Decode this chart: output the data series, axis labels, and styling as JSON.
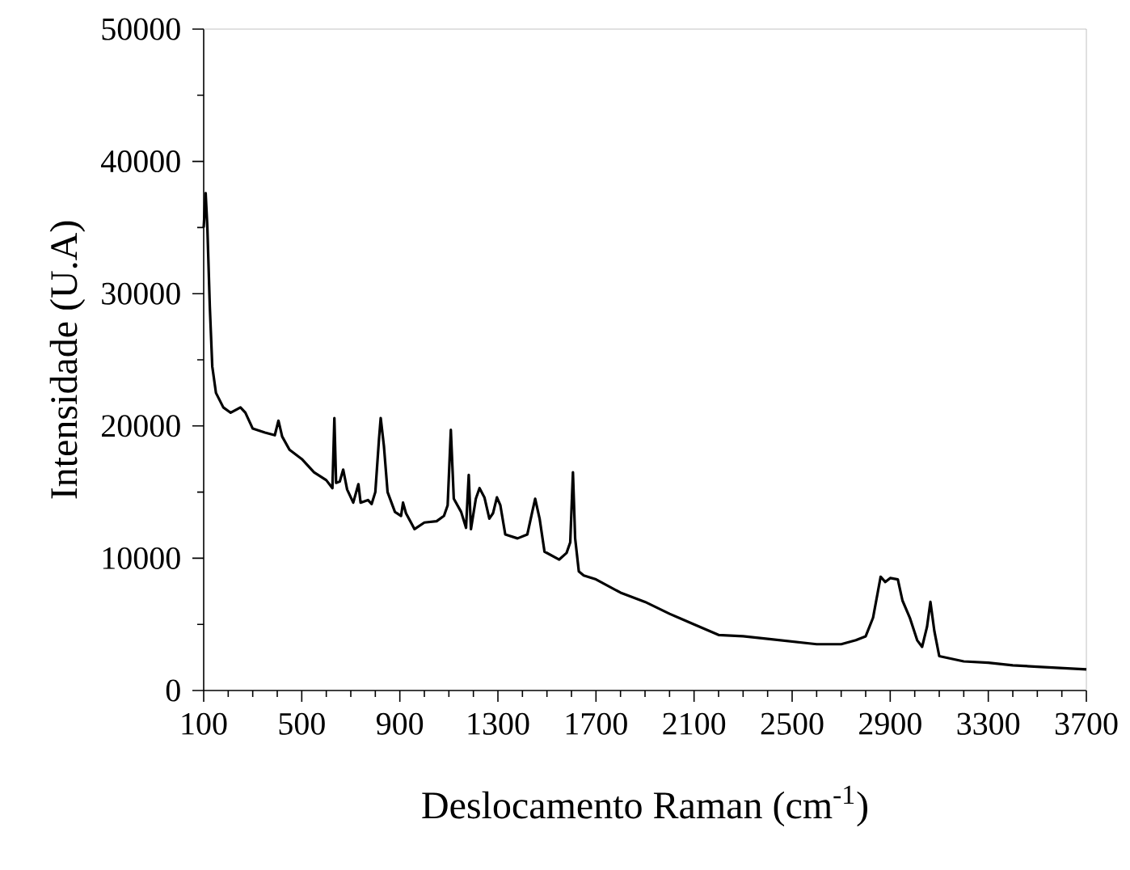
{
  "chart_data": {
    "type": "line",
    "xlabel": "Deslocamento Raman (cm$^{-1}$)",
    "ylabel": "Intensidade (U.A)",
    "color": "#000000",
    "xlim": [
      100,
      3700
    ],
    "ylim": [
      0,
      50000
    ],
    "xticks": [
      100,
      500,
      900,
      1300,
      1700,
      2100,
      2500,
      2900,
      3300,
      3700
    ],
    "yticks": [
      0,
      10000,
      20000,
      30000,
      40000,
      50000
    ],
    "x": [
      100,
      108,
      115,
      125,
      135,
      150,
      180,
      210,
      250,
      270,
      300,
      350,
      390,
      405,
      420,
      450,
      500,
      550,
      600,
      625,
      633,
      640,
      655,
      669,
      685,
      710,
      731,
      740,
      770,
      785,
      800,
      815,
      822,
      835,
      850,
      880,
      905,
      913,
      925,
      960,
      1000,
      1050,
      1080,
      1095,
      1108,
      1120,
      1150,
      1170,
      1181,
      1190,
      1210,
      1225,
      1245,
      1265,
      1280,
      1296,
      1310,
      1330,
      1380,
      1420,
      1440,
      1452,
      1470,
      1490,
      1550,
      1580,
      1595,
      1606,
      1615,
      1630,
      1650,
      1700,
      1800,
      1900,
      2000,
      2100,
      2200,
      2300,
      2400,
      2500,
      2600,
      2700,
      2760,
      2800,
      2830,
      2850,
      2861,
      2880,
      2900,
      2931,
      2950,
      2980,
      3010,
      3030,
      3050,
      3064,
      3080,
      3100,
      3200,
      3300,
      3400,
      3500,
      3600,
      3700
    ],
    "values": [
      35000,
      37600,
      35000,
      29000,
      24500,
      22500,
      21400,
      21000,
      21400,
      21000,
      19800,
      19500,
      19300,
      20400,
      19200,
      18200,
      17500,
      16500,
      15900,
      15300,
      20600,
      15700,
      15800,
      16700,
      15200,
      14200,
      15600,
      14200,
      14400,
      14100,
      15000,
      19000,
      20600,
      18500,
      15000,
      13500,
      13200,
      14200,
      13400,
      12200,
      12700,
      12800,
      13200,
      14000,
      19700,
      14500,
      13500,
      12300,
      16300,
      12200,
      14500,
      15300,
      14600,
      13000,
      13400,
      14600,
      14000,
      11800,
      11500,
      11800,
      13500,
      14500,
      13000,
      10500,
      9900,
      10400,
      11200,
      16500,
      11500,
      9000,
      8700,
      8400,
      7400,
      6700,
      5800,
      5000,
      4200,
      4100,
      3900,
      3700,
      3500,
      3500,
      3800,
      4100,
      5500,
      7500,
      8600,
      8200,
      8500,
      8400,
      6800,
      5500,
      3800,
      3300,
      4800,
      6700,
      4500,
      2600,
      2200,
      2100,
      1900,
      1800,
      1700,
      1600
    ]
  }
}
